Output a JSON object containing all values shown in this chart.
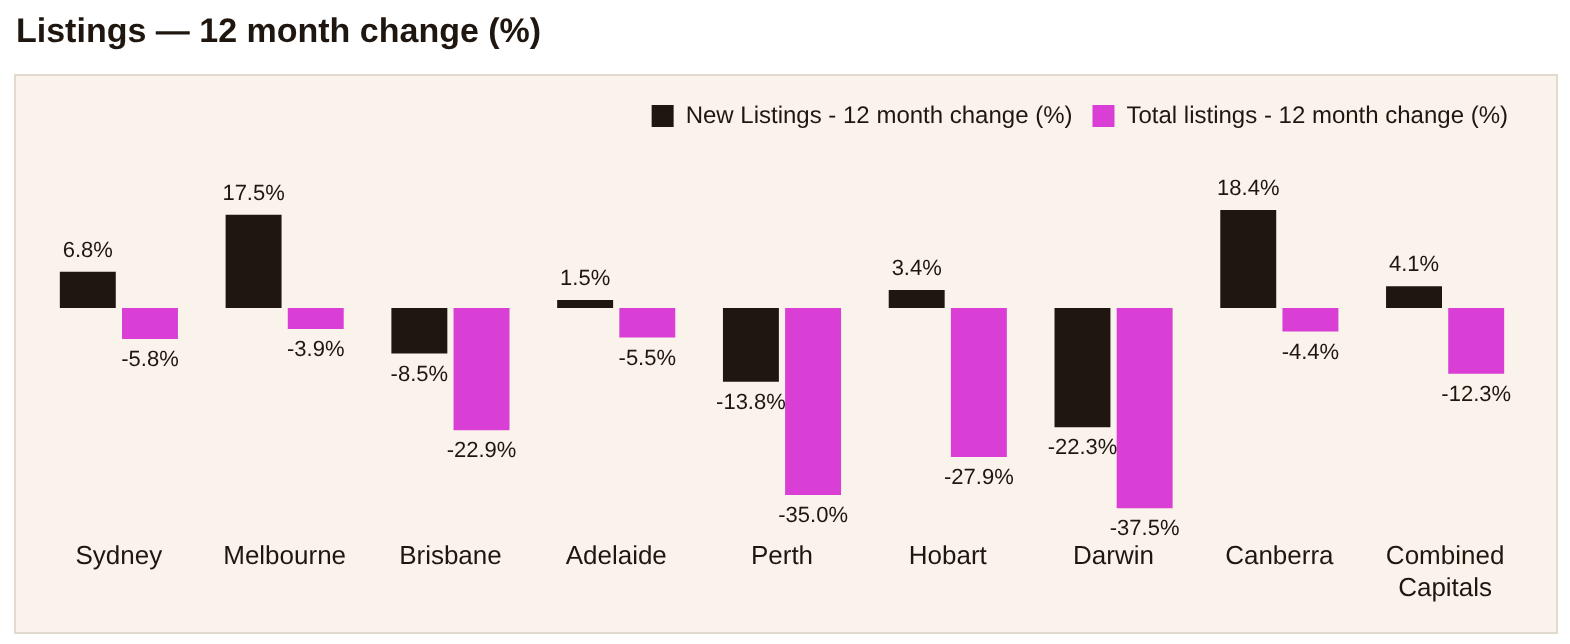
{
  "chart_data": {
    "type": "bar",
    "title": "Listings — 12 month change (%)",
    "categories": [
      "Sydney",
      "Melbourne",
      "Brisbane",
      "Adelaide",
      "Perth",
      "Hobart",
      "Darwin",
      "Canberra",
      "Combined Capitals"
    ],
    "series": [
      {
        "name": "New Listings - 12 month change (%)",
        "color": "#1f1610",
        "values": [
          6.8,
          17.5,
          -8.5,
          1.5,
          -13.8,
          3.4,
          -22.3,
          18.4,
          4.1
        ],
        "value_labels": [
          "6.8%",
          "17.5%",
          "-8.5%",
          "1.5%",
          "-13.8%",
          "3.4%",
          "-22.3%",
          "18.4%",
          "4.1%"
        ]
      },
      {
        "name": "Total listings - 12 month change (%)",
        "color": "#d93fd4",
        "values": [
          -5.8,
          -3.9,
          -22.9,
          -5.5,
          -35.0,
          -27.9,
          -37.5,
          -4.4,
          -12.3
        ],
        "value_labels": [
          "-5.8%",
          "-3.9%",
          "-22.9%",
          "-5.5%",
          "-35.0%",
          "-27.9%",
          "-37.5%",
          "-4.4%",
          "-12.3%"
        ]
      }
    ],
    "legend": "top right",
    "grid": false
  }
}
